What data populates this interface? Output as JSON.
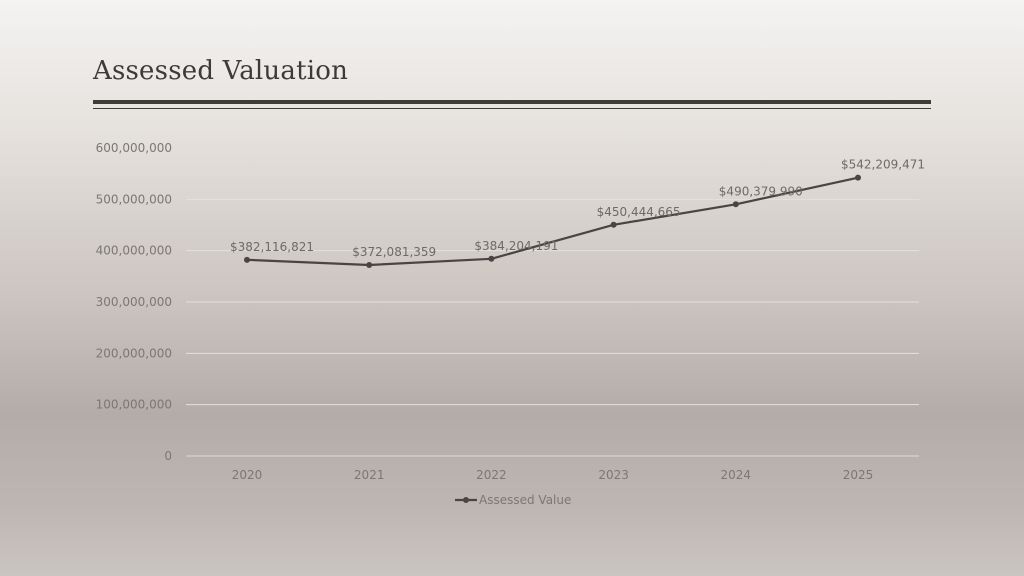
{
  "slide": {
    "title": "Assessed Valuation"
  },
  "chart_data": {
    "type": "line",
    "title": "",
    "xlabel": "",
    "ylabel": "",
    "categories": [
      "2020",
      "2021",
      "2022",
      "2023",
      "2024",
      "2025"
    ],
    "series": [
      {
        "name": "Assessed Value",
        "values": [
          382116821,
          372081359,
          384204191,
          450444665,
          490379990,
          542209471
        ],
        "data_labels": [
          "$382,116,821",
          "$372,081,359",
          "$384,204,191",
          "$450,444,665",
          "$490,379,990",
          "$542,209,471"
        ],
        "color": "#4a4542"
      }
    ],
    "ylim": [
      0,
      600000000
    ],
    "y_ticks": [
      0,
      100000000,
      200000000,
      300000000,
      400000000,
      500000000,
      600000000
    ],
    "y_tick_labels": [
      "0",
      "100,000,000",
      "200,000,000",
      "300,000,000",
      "400,000,000",
      "500,000,000",
      "600,000,000"
    ],
    "grid": true,
    "legend": "bottom",
    "colors": {
      "gridline": "#e4e0dd",
      "axis": "#d8d3cf"
    }
  }
}
